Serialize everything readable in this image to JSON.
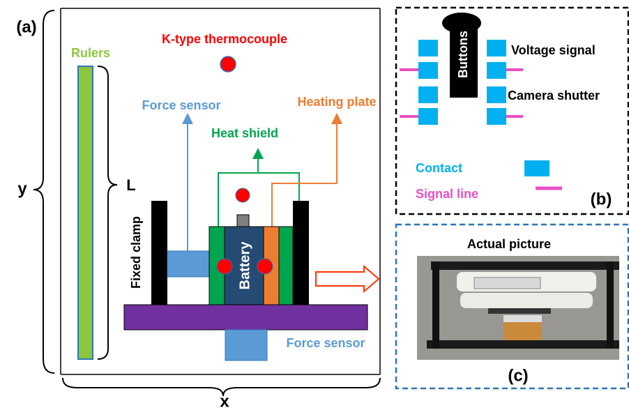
{
  "panel_a": {
    "label": "(a)",
    "rulers": "Rulers",
    "thermocouple": "K-type thermocouple",
    "force_sensor_top": "Force sensor",
    "heating_plate": "Heating plate",
    "heat_shield": "Heat shield",
    "length": "L",
    "y_axis": "y",
    "x_axis": "x",
    "fixed_clamp": "Fixed clamp",
    "battery": "Battery",
    "force_sensor_bottom": "Force sensor"
  },
  "panel_b": {
    "label": "(b)",
    "buttons": "Buttons",
    "voltage_signal": "Voltage signal",
    "camera_shutter": "Camera shutter",
    "contact": "Contact",
    "signal_line": "Signal line"
  },
  "panel_c": {
    "label": "(c)",
    "title": "Actual picture"
  }
}
